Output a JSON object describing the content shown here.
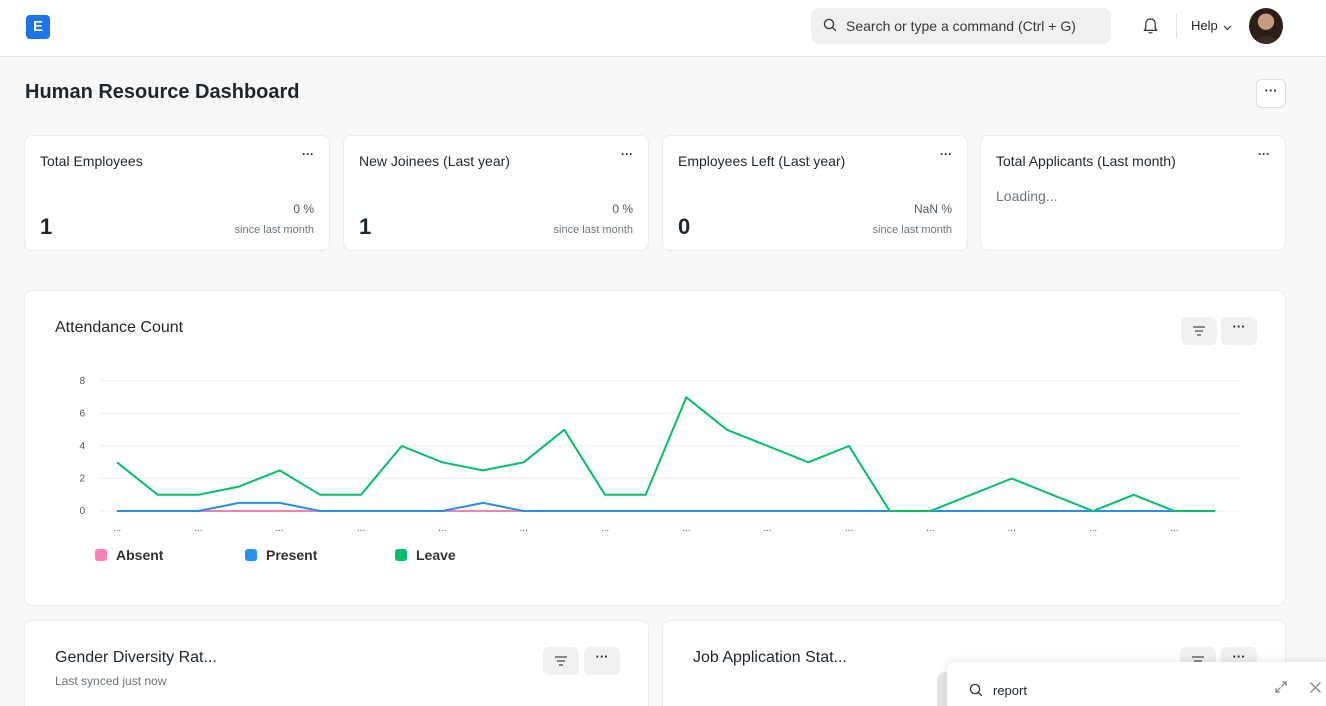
{
  "navbar": {
    "logo_letter": "E",
    "search_placeholder": "Search or type a command (Ctrl + G)",
    "help_label": "Help"
  },
  "page": {
    "title": "Human Resource Dashboard",
    "menu_label": "···"
  },
  "number_cards": [
    {
      "title": "Total Employees",
      "value": "1",
      "percent": "0 %",
      "since": "since last month"
    },
    {
      "title": "New Joinees (Last year)",
      "value": "1",
      "percent": "0 %",
      "since": "since last month"
    },
    {
      "title": "Employees Left (Last year)",
      "value": "0",
      "percent": "NaN %",
      "since": "since last month"
    },
    {
      "title": "Total Applicants (Last month)",
      "loading": "Loading..."
    }
  ],
  "card_menu": "···",
  "attendance": {
    "title": "Attendance Count",
    "menu_label": "···"
  },
  "chart_data": {
    "type": "line",
    "title": "Attendance Count",
    "ylim": [
      0,
      8
    ],
    "y_ticks": [
      "0",
      "2",
      "4",
      "6",
      "8"
    ],
    "x_tick_label": "...",
    "grid": true,
    "legend_position": "bottom-left",
    "series": [
      {
        "name": "Absent",
        "color": "#ff5fa0",
        "values": [
          0,
          0,
          0,
          0,
          0,
          0,
          0,
          0,
          0,
          0,
          0,
          0,
          0,
          0,
          0,
          0,
          0,
          0,
          0,
          0,
          0,
          0,
          0,
          0,
          0,
          0,
          0,
          0
        ]
      },
      {
        "name": "Present",
        "color": "#2490ef",
        "values": [
          0,
          0,
          0,
          0.5,
          0.5,
          0,
          0,
          0,
          0,
          0.5,
          0,
          0,
          0,
          0,
          0,
          0,
          0,
          0,
          0,
          0,
          0,
          0,
          0,
          0,
          0,
          0,
          0,
          0
        ]
      },
      {
        "name": "Leave",
        "color": "#28a745",
        "values": [
          3,
          1,
          1,
          1.5,
          2.5,
          1,
          1,
          4,
          3,
          2.5,
          3,
          5,
          1,
          1,
          7,
          5,
          4,
          3,
          4,
          0,
          0,
          1,
          2,
          1,
          0,
          1,
          0,
          0
        ]
      }
    ]
  },
  "cards_bottom": [
    {
      "title": "Gender Diversity Rat...",
      "subtitle": "Last synced just now"
    },
    {
      "title": "Job Application Stat..."
    }
  ],
  "search_popup": {
    "query": "report"
  }
}
